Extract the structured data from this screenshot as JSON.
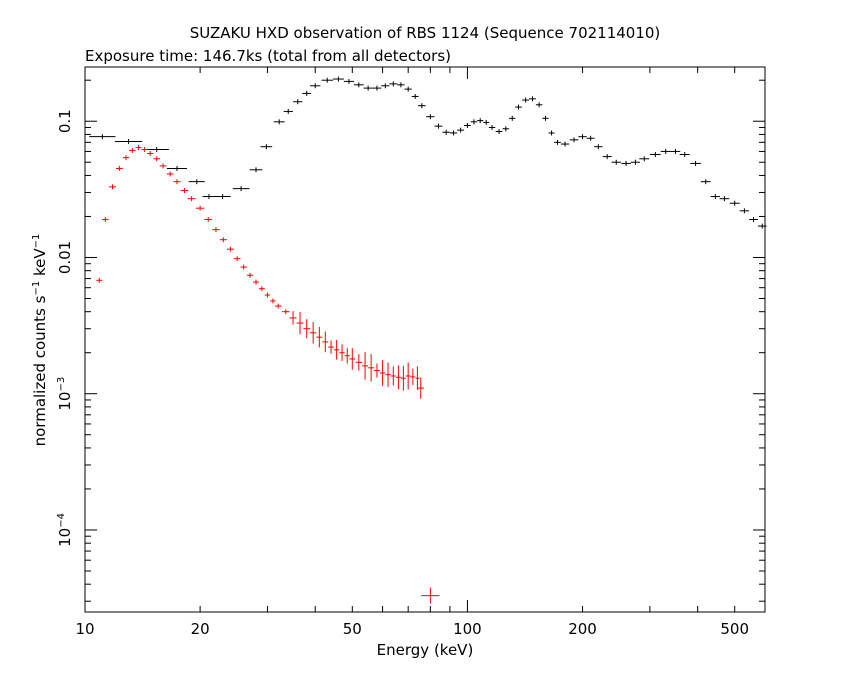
{
  "chart_data": {
    "type": "scatter",
    "title": "SUZAKU HXD observation of RBS 1124 (Sequence 702114010)",
    "subtitle": "Exposure time: 146.7ks (total from all detectors)",
    "xlabel": "Energy (keV)",
    "ylabel_main": "normalized counts s",
    "ylabel_unit": " keV",
    "ylabel_exp": "−1",
    "x_scale": "log",
    "y_scale": "log",
    "xlim": [
      10,
      600
    ],
    "ylim": [
      2.5e-05,
      0.25
    ],
    "x_ticks": [
      {
        "value": 10,
        "label": "10"
      },
      {
        "value": 20,
        "label": "20"
      },
      {
        "value": 50,
        "label": "50"
      },
      {
        "value": 100,
        "label": "100"
      },
      {
        "value": 200,
        "label": "200"
      },
      {
        "value": 500,
        "label": "500"
      }
    ],
    "y_ticks": [
      {
        "value": 0.1,
        "label": "0.1",
        "mant": "",
        "exp": ""
      },
      {
        "value": 0.01,
        "label": "0.01",
        "mant": "",
        "exp": ""
      },
      {
        "value": 0.001,
        "label": "",
        "mant": "10",
        "exp": "−3"
      },
      {
        "value": 0.0001,
        "label": "",
        "mant": "10",
        "exp": "−4"
      }
    ],
    "colors": {
      "series_1": "#000000",
      "series_2": "#ff0000",
      "axis": "#000000"
    },
    "series": [
      {
        "color": "#000000",
        "style": "crosses",
        "points": [
          [
            11.1,
            0.077
          ],
          [
            13.0,
            0.071
          ],
          [
            15.4,
            0.062
          ],
          [
            17.4,
            0.045
          ],
          [
            19.6,
            0.036
          ],
          [
            21.1,
            0.028
          ],
          [
            22.9,
            0.028
          ],
          [
            25.6,
            0.032
          ],
          [
            28.0,
            0.044
          ],
          [
            29.8,
            0.065
          ],
          [
            32.2,
            0.099
          ],
          [
            34.0,
            0.118
          ],
          [
            36.0,
            0.139
          ],
          [
            38.0,
            0.16
          ],
          [
            40.0,
            0.182
          ],
          [
            43.0,
            0.2
          ],
          [
            46.0,
            0.204
          ],
          [
            49.0,
            0.196
          ],
          [
            52.0,
            0.185
          ],
          [
            55.0,
            0.175
          ],
          [
            58.0,
            0.175
          ],
          [
            61.0,
            0.182
          ],
          [
            64.0,
            0.188
          ],
          [
            67.0,
            0.185
          ],
          [
            70.0,
            0.172
          ],
          [
            73.0,
            0.152
          ],
          [
            76.0,
            0.13
          ],
          [
            80.0,
            0.108
          ],
          [
            84.0,
            0.092
          ],
          [
            88.0,
            0.083
          ],
          [
            92.0,
            0.082
          ],
          [
            96.0,
            0.086
          ],
          [
            100.0,
            0.093
          ],
          [
            104.0,
            0.099
          ],
          [
            108.0,
            0.101
          ],
          [
            112.0,
            0.098
          ],
          [
            116.0,
            0.09
          ],
          [
            121.0,
            0.084
          ],
          [
            126.0,
            0.088
          ],
          [
            131.0,
            0.105
          ],
          [
            136.0,
            0.127
          ],
          [
            142.0,
            0.143
          ],
          [
            148.0,
            0.146
          ],
          [
            154.0,
            0.132
          ],
          [
            160.0,
            0.105
          ],
          [
            166.0,
            0.082
          ],
          [
            172.0,
            0.07
          ],
          [
            180.0,
            0.068
          ],
          [
            190.0,
            0.073
          ],
          [
            200.0,
            0.077
          ],
          [
            210.0,
            0.075
          ],
          [
            220.0,
            0.065
          ],
          [
            232.0,
            0.055
          ],
          [
            245.0,
            0.05
          ],
          [
            260.0,
            0.049
          ],
          [
            275.0,
            0.05
          ],
          [
            290.0,
            0.053
          ],
          [
            310.0,
            0.057
          ],
          [
            330.0,
            0.06
          ],
          [
            350.0,
            0.06
          ],
          [
            370.0,
            0.057
          ],
          [
            395.0,
            0.049
          ],
          [
            420.0,
            0.036
          ],
          [
            445.0,
            0.028
          ],
          [
            470.0,
            0.027
          ],
          [
            500.0,
            0.025
          ],
          [
            530.0,
            0.022
          ],
          [
            560.0,
            0.019
          ],
          [
            590.0,
            0.017
          ]
        ]
      },
      {
        "color": "#ff0000",
        "style": "crosses",
        "points": [
          [
            10.9,
            0.0068
          ],
          [
            11.3,
            0.019
          ],
          [
            11.8,
            0.033
          ],
          [
            12.3,
            0.045
          ],
          [
            12.8,
            0.054
          ],
          [
            13.3,
            0.061
          ],
          [
            13.8,
            0.064
          ],
          [
            14.3,
            0.062
          ],
          [
            14.8,
            0.058
          ],
          [
            15.4,
            0.053
          ],
          [
            16.0,
            0.047
          ],
          [
            16.7,
            0.041
          ],
          [
            17.4,
            0.036
          ],
          [
            18.2,
            0.031
          ],
          [
            19.0,
            0.027
          ],
          [
            20.0,
            0.023
          ],
          [
            21.0,
            0.019
          ],
          [
            22.0,
            0.016
          ],
          [
            23.0,
            0.0135
          ],
          [
            24.0,
            0.0115
          ],
          [
            25.0,
            0.0098
          ],
          [
            26.0,
            0.0085
          ],
          [
            27.0,
            0.0074
          ],
          [
            28.0,
            0.0066
          ],
          [
            29.0,
            0.0059
          ],
          [
            30.0,
            0.0053
          ],
          [
            31.0,
            0.0048
          ],
          [
            32.0,
            0.0044
          ],
          [
            33.5,
            0.004
          ],
          [
            35.0,
            0.0036
          ],
          [
            36.5,
            0.0033
          ],
          [
            38.0,
            0.003
          ],
          [
            39.5,
            0.0028
          ],
          [
            41.0,
            0.0026
          ],
          [
            42.5,
            0.0024
          ],
          [
            44.0,
            0.0022
          ],
          [
            45.5,
            0.0021
          ],
          [
            47.0,
            0.002
          ],
          [
            48.5,
            0.0019
          ],
          [
            50.0,
            0.0018
          ],
          [
            52.0,
            0.0017
          ],
          [
            54.0,
            0.0016
          ],
          [
            56.0,
            0.00155
          ],
          [
            58.0,
            0.00148
          ],
          [
            60.0,
            0.00142
          ],
          [
            62.0,
            0.00138
          ],
          [
            64.0,
            0.00135
          ],
          [
            66.0,
            0.00132
          ],
          [
            68.0,
            0.0013
          ],
          [
            70.0,
            0.00135
          ],
          [
            72.0,
            0.00133
          ],
          [
            74.0,
            0.0013
          ],
          [
            75.5,
            0.0011
          ],
          [
            80.0,
            3.3e-05
          ]
        ]
      }
    ]
  }
}
